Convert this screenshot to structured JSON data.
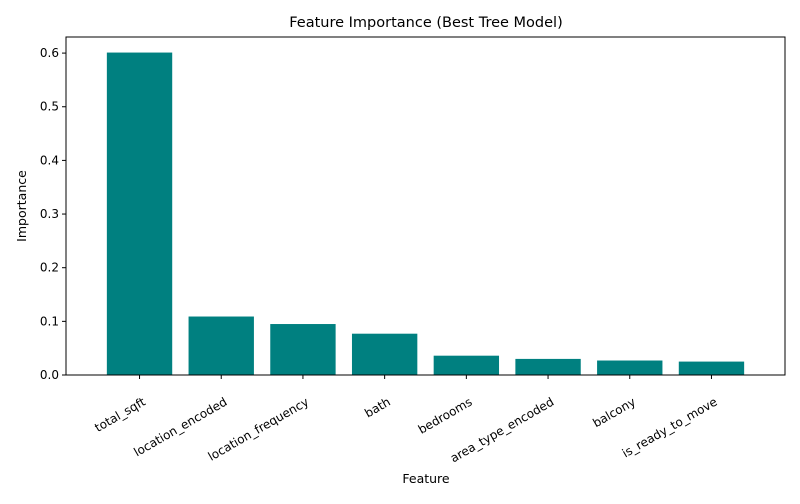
{
  "chart_data": {
    "type": "bar",
    "title": "Feature Importance (Best Tree Model)",
    "xlabel": "Feature",
    "ylabel": "Importance",
    "categories": [
      "total_sqft",
      "location_encoded",
      "location_frequency",
      "bath",
      "bedrooms",
      "area_type_encoded",
      "balcony",
      "is_ready_to_move"
    ],
    "values": [
      0.601,
      0.109,
      0.095,
      0.077,
      0.036,
      0.03,
      0.027,
      0.025
    ],
    "ylim": [
      0,
      0.63
    ],
    "yticks": [
      "0.0",
      "0.1",
      "0.2",
      "0.3",
      "0.4",
      "0.5",
      "0.6"
    ],
    "bar_color": "#008080",
    "grid": false,
    "x_tick_rotation": "30deg"
  }
}
